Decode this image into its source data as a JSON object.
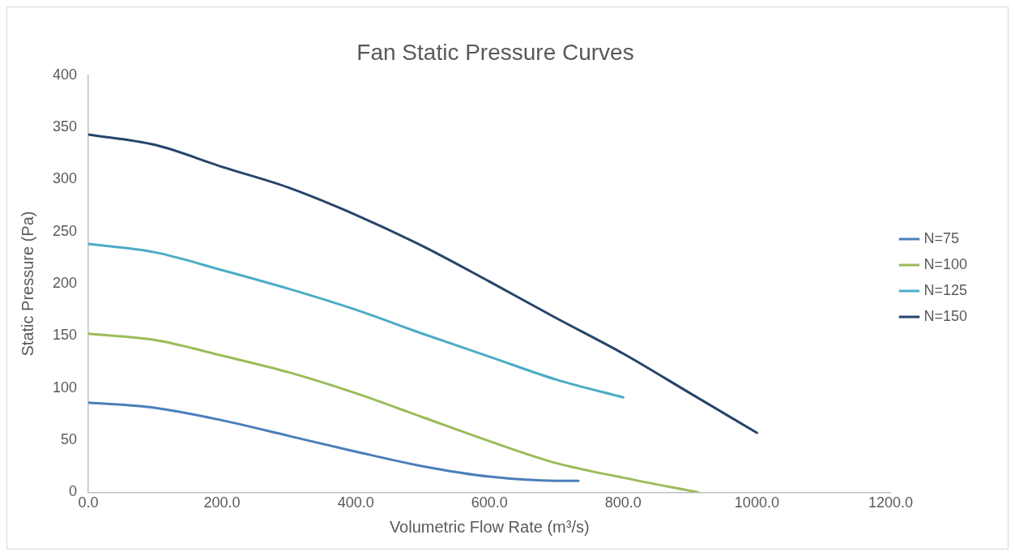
{
  "chart_data": {
    "type": "line",
    "title": "Fan Static Pressure Curves",
    "xlabel": "Volumetric Flow Rate (m³/s)",
    "ylabel": "Static Pressure (Pa)",
    "xlim": [
      0,
      1200
    ],
    "xticks": [
      {
        "value": 0,
        "label": "0.0"
      },
      {
        "value": 200,
        "label": "200.0"
      },
      {
        "value": 400,
        "label": "400.0"
      },
      {
        "value": 600,
        "label": "600.0"
      },
      {
        "value": 800,
        "label": "800.0"
      },
      {
        "value": 1000,
        "label": "1000.0"
      },
      {
        "value": 1200,
        "label": "1200.0"
      }
    ],
    "ylim": [
      0,
      400
    ],
    "yticks": [
      0,
      50,
      100,
      150,
      200,
      250,
      300,
      350,
      400
    ],
    "grid": false,
    "legend": "right",
    "marker": "none",
    "line_style": "solid",
    "series": [
      {
        "name": "N=75",
        "color": "#4a7ebb",
        "x": [
          0,
          100,
          200,
          300,
          400,
          500,
          600,
          700,
          733
        ],
        "values": [
          86,
          81,
          69,
          54,
          39,
          25,
          15,
          11,
          11
        ]
      },
      {
        "name": "N=100",
        "color": "#9bbb59",
        "x": [
          0,
          100,
          200,
          300,
          400,
          500,
          600,
          700,
          800,
          912
        ],
        "values": [
          152,
          146,
          131,
          115,
          95,
          72,
          49,
          28,
          14,
          0
        ]
      },
      {
        "name": "N=125",
        "color": "#4bacc6",
        "x": [
          0,
          100,
          200,
          300,
          400,
          500,
          600,
          700,
          800
        ],
        "values": [
          238,
          230,
          213,
          195,
          175,
          152,
          130,
          108,
          91
        ]
      },
      {
        "name": "N=150",
        "color": "#26446b",
        "x": [
          0,
          100,
          200,
          300,
          400,
          500,
          600,
          700,
          800,
          900,
          1000
        ],
        "values": [
          343,
          333,
          312,
          292,
          266,
          236,
          202,
          167,
          133,
          95,
          57
        ]
      }
    ]
  }
}
